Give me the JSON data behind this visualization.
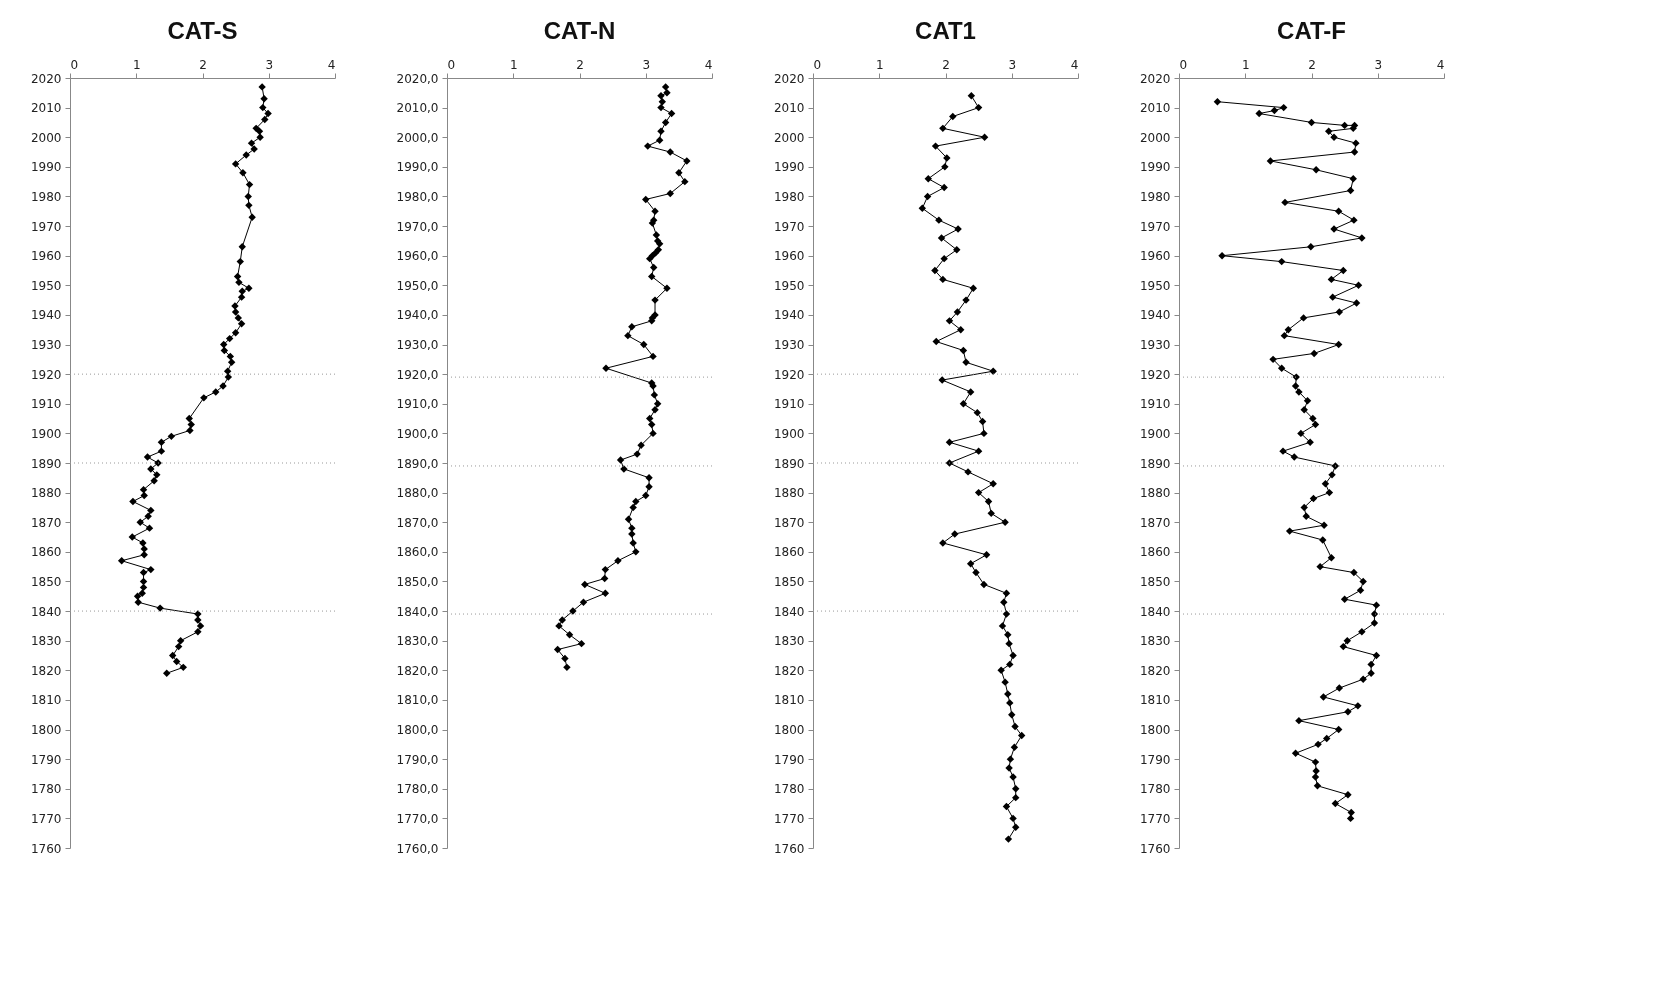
{
  "chart_data": [
    {
      "type": "line",
      "title": "CAT-S",
      "marker": "diamond",
      "line_style": "solid",
      "xlim": [
        0,
        4
      ],
      "xticks": [
        0,
        1,
        2,
        3,
        4
      ],
      "ylim": [
        1760,
        2020
      ],
      "yticks": [
        1760,
        1770,
        1780,
        1790,
        1800,
        1810,
        1820,
        1830,
        1840,
        1850,
        1860,
        1870,
        1880,
        1890,
        1900,
        1910,
        1920,
        1930,
        1940,
        1950,
        1960,
        1970,
        1980,
        1990,
        2000,
        2010,
        2020
      ],
      "ref_lines": [
        {
          "axis": "y",
          "value": 1920,
          "color": "#999999",
          "line_style": "dotted"
        },
        {
          "axis": "y",
          "value": 1890,
          "color": "#999999",
          "line_style": "dotted"
        },
        {
          "axis": "y",
          "value": 1840,
          "color": "#999999",
          "line_style": "dotted"
        }
      ],
      "series": [
        {
          "color": "#000000",
          "x": [
            2.9,
            2.93,
            2.91,
            2.99,
            2.94,
            2.81,
            2.86,
            2.87,
            2.74,
            2.78,
            2.66,
            2.5,
            2.61,
            2.71,
            2.69,
            2.7,
            2.75,
            2.6,
            2.57,
            2.53,
            2.55,
            2.7,
            2.6,
            2.59,
            2.49,
            2.5,
            2.54,
            2.59,
            2.5,
            2.41,
            2.32,
            2.33,
            2.42,
            2.44,
            2.38,
            2.39,
            2.31,
            2.2,
            2.02,
            1.8,
            1.83,
            1.81,
            1.53,
            1.38,
            1.38,
            1.17,
            1.33,
            1.22,
            1.31,
            1.27,
            1.11,
            1.12,
            0.95,
            1.22,
            1.18,
            1.06,
            1.2,
            0.94,
            1.1,
            1.12,
            1.12,
            0.78,
            1.22,
            1.11,
            1.11,
            1.11,
            1.09,
            1.02,
            1.03,
            1.36,
            1.93,
            1.93,
            1.97,
            1.93,
            1.67,
            1.64,
            1.55,
            1.61,
            1.71,
            1.46
          ],
          "values": [
            2017,
            2013,
            2010,
            2008,
            2006,
            2003,
            2002,
            2000,
            1998,
            1996,
            1994,
            1991,
            1988,
            1984,
            1980,
            1977,
            1973,
            1963,
            1958,
            1953,
            1951,
            1949,
            1948,
            1946,
            1943,
            1941,
            1939,
            1937,
            1934,
            1932,
            1930,
            1928,
            1926,
            1924,
            1921,
            1919,
            1916,
            1914,
            1912,
            1905,
            1903,
            1901,
            1899,
            1897,
            1894,
            1892,
            1890,
            1888,
            1886,
            1884,
            1881,
            1879,
            1877,
            1874,
            1872,
            1870,
            1868,
            1865,
            1863,
            1861,
            1859,
            1857,
            1854,
            1853,
            1850,
            1848,
            1846,
            1845,
            1843,
            1841,
            1839,
            1837,
            1835,
            1833,
            1830,
            1828,
            1825,
            1823,
            1821,
            1819
          ]
        }
      ]
    },
    {
      "type": "line",
      "title": "CAT-N",
      "marker": "diamond",
      "line_style": "solid",
      "xlim": [
        0,
        4
      ],
      "xticks": [
        0,
        1,
        2,
        3,
        4
      ],
      "ylim": [
        1760,
        2020
      ],
      "yticks": [
        {
          "value": 1760,
          "label": "1760,0"
        },
        {
          "value": 1770,
          "label": "1770,0"
        },
        {
          "value": 1780,
          "label": "1780,0"
        },
        {
          "value": 1790,
          "label": "1790,0"
        },
        {
          "value": 1800,
          "label": "1800,0"
        },
        {
          "value": 1810,
          "label": "1810,0"
        },
        {
          "value": 1820,
          "label": "1820,0"
        },
        {
          "value": 1830,
          "label": "1830,0"
        },
        {
          "value": 1840,
          "label": "1840,0"
        },
        {
          "value": 1850,
          "label": "1850,0"
        },
        {
          "value": 1860,
          "label": "1860,0"
        },
        {
          "value": 1870,
          "label": "1870,0"
        },
        {
          "value": 1880,
          "label": "1880,0"
        },
        {
          "value": 1890,
          "label": "1890,0"
        },
        {
          "value": 1900,
          "label": "1900,0"
        },
        {
          "value": 1910,
          "label": "1910,0"
        },
        {
          "value": 1920,
          "label": "1920,0"
        },
        {
          "value": 1930,
          "label": "1930,0"
        },
        {
          "value": 1940,
          "label": "1940,0"
        },
        {
          "value": 1950,
          "label": "1950,0"
        },
        {
          "value": 1960,
          "label": "1960,0"
        },
        {
          "value": 1970,
          "label": "1970,0"
        },
        {
          "value": 1980,
          "label": "1980,0"
        },
        {
          "value": 1990,
          "label": "1990,0"
        },
        {
          "value": 2000,
          "label": "2000,0"
        },
        {
          "value": 2010,
          "label": "2010,0"
        },
        {
          "value": 2020,
          "label": "2020,0"
        }
      ],
      "ref_lines": [
        {
          "axis": "y",
          "value": 1919,
          "color": "#999999",
          "line_style": "dotted"
        },
        {
          "axis": "y",
          "value": 1889,
          "color": "#999999",
          "line_style": "dotted"
        },
        {
          "axis": "y",
          "value": 1839,
          "color": "#999999",
          "line_style": "dotted"
        }
      ],
      "series": [
        {
          "color": "#000000",
          "x": [
            3.3,
            3.32,
            3.23,
            3.25,
            3.23,
            3.39,
            3.3,
            3.23,
            3.21,
            3.03,
            3.37,
            3.62,
            3.5,
            3.59,
            3.37,
            3.0,
            3.14,
            3.12,
            3.1,
            3.16,
            3.18,
            3.21,
            3.19,
            3.15,
            3.1,
            3.06,
            3.12,
            3.09,
            3.32,
            3.14,
            3.14,
            3.1,
            3.09,
            2.79,
            2.73,
            2.97,
            3.11,
            2.4,
            3.09,
            3.11,
            3.13,
            3.18,
            3.14,
            3.06,
            3.09,
            3.11,
            2.93,
            2.87,
            2.62,
            2.67,
            3.05,
            3.05,
            3.0,
            2.85,
            2.81,
            2.74,
            2.79,
            2.79,
            2.81,
            2.85,
            2.58,
            2.39,
            2.38,
            2.08,
            2.39,
            2.06,
            1.9,
            1.74,
            1.69,
            1.85,
            2.03,
            1.67,
            1.78,
            1.81
          ],
          "values": [
            2017,
            2015,
            2014,
            2012,
            2010,
            2008,
            2005,
            2002,
            1999,
            1997,
            1995,
            1992,
            1988,
            1985,
            1981,
            1979,
            1975,
            1972,
            1971,
            1967,
            1965,
            1964,
            1962,
            1961,
            1960,
            1959,
            1956,
            1953,
            1949,
            1945,
            1940,
            1939,
            1938,
            1936,
            1933,
            1930,
            1926,
            1922,
            1917,
            1916,
            1913,
            1910,
            1908,
            1905,
            1903,
            1900,
            1896,
            1893,
            1891,
            1888,
            1885,
            1882,
            1879,
            1877,
            1875,
            1871,
            1868,
            1866,
            1863,
            1860,
            1857,
            1854,
            1851,
            1849,
            1846,
            1843,
            1840,
            1837,
            1835,
            1832,
            1829,
            1827,
            1824,
            1821
          ]
        }
      ]
    },
    {
      "type": "line",
      "title": "CAT1",
      "marker": "diamond",
      "line_style": "solid",
      "xlim": [
        0,
        4
      ],
      "xticks": [
        0,
        1,
        2,
        3,
        4
      ],
      "ylim": [
        1760,
        2020
      ],
      "yticks": [
        1760,
        1770,
        1780,
        1790,
        1800,
        1810,
        1820,
        1830,
        1840,
        1850,
        1860,
        1870,
        1880,
        1890,
        1900,
        1910,
        1920,
        1930,
        1940,
        1950,
        1960,
        1970,
        1980,
        1990,
        2000,
        2010,
        2020
      ],
      "ref_lines": [
        {
          "axis": "y",
          "value": 1920,
          "color": "#999999",
          "line_style": "dotted"
        },
        {
          "axis": "y",
          "value": 1890,
          "color": "#999999",
          "line_style": "dotted"
        },
        {
          "axis": "y",
          "value": 1840,
          "color": "#999999",
          "line_style": "dotted"
        }
      ],
      "series": [
        {
          "color": "#000000",
          "x": [
            2.39,
            2.5,
            2.11,
            1.96,
            2.59,
            1.85,
            2.02,
            1.99,
            1.74,
            1.98,
            1.73,
            1.65,
            1.9,
            2.19,
            1.94,
            2.17,
            1.98,
            1.84,
            1.96,
            2.42,
            2.31,
            2.18,
            2.06,
            2.23,
            1.86,
            2.27,
            2.31,
            2.72,
            1.95,
            2.38,
            2.27,
            2.48,
            2.56,
            2.58,
            2.06,
            2.5,
            2.06,
            2.34,
            2.72,
            2.5,
            2.65,
            2.69,
            2.9,
            2.14,
            1.96,
            2.62,
            2.38,
            2.46,
            2.58,
            2.92,
            2.88,
            2.92,
            2.86,
            2.94,
            2.96,
            3.02,
            2.97,
            2.84,
            2.9,
            2.94,
            2.97,
            3.0,
            3.05,
            3.15,
            3.04,
            2.98,
            2.96,
            3.02,
            3.06,
            3.06,
            2.92,
            3.02,
            3.06,
            2.95
          ],
          "values": [
            2014,
            2010,
            2007,
            2003,
            2000,
            1997,
            1993,
            1990,
            1986,
            1983,
            1980,
            1976,
            1972,
            1969,
            1966,
            1962,
            1959,
            1955,
            1952,
            1949,
            1945,
            1941,
            1938,
            1935,
            1931,
            1928,
            1924,
            1921,
            1918,
            1914,
            1910,
            1907,
            1904,
            1900,
            1897,
            1894,
            1890,
            1887,
            1883,
            1880,
            1877,
            1873,
            1870,
            1866,
            1863,
            1859,
            1856,
            1853,
            1849,
            1846,
            1843,
            1839,
            1835,
            1832,
            1829,
            1825,
            1822,
            1820,
            1816,
            1812,
            1809,
            1805,
            1801,
            1798,
            1794,
            1790,
            1787,
            1784,
            1780,
            1777,
            1774,
            1770,
            1767,
            1763
          ]
        }
      ]
    },
    {
      "type": "line",
      "title": "CAT-F",
      "marker": "diamond",
      "line_style": "solid",
      "xlim": [
        0,
        4
      ],
      "xticks": [
        0,
        1,
        2,
        3,
        4
      ],
      "ylim": [
        1760,
        2020
      ],
      "yticks": [
        1760,
        1770,
        1780,
        1790,
        1800,
        1810,
        1820,
        1830,
        1840,
        1850,
        1860,
        1870,
        1880,
        1890,
        1900,
        1910,
        1920,
        1930,
        1940,
        1950,
        1960,
        1970,
        1980,
        1990,
        2000,
        2010,
        2020
      ],
      "ref_lines": [
        {
          "axis": "y",
          "value": 1919,
          "color": "#999999",
          "line_style": "dotted"
        },
        {
          "axis": "y",
          "value": 1889,
          "color": "#999999",
          "line_style": "dotted"
        },
        {
          "axis": "y",
          "value": 1839,
          "color": "#999999",
          "line_style": "dotted"
        }
      ],
      "series": [
        {
          "color": "#000000",
          "x": [
            0.58,
            1.58,
            1.44,
            1.21,
            2.0,
            2.5,
            2.65,
            2.63,
            2.26,
            2.34,
            2.67,
            2.65,
            1.38,
            2.07,
            2.63,
            2.59,
            1.6,
            2.41,
            2.64,
            2.34,
            2.76,
            1.99,
            0.65,
            1.55,
            2.48,
            2.3,
            2.71,
            2.32,
            2.68,
            2.42,
            1.88,
            1.65,
            1.59,
            2.41,
            2.04,
            1.42,
            1.55,
            1.77,
            1.76,
            1.81,
            1.94,
            1.89,
            2.02,
            2.06,
            1.84,
            1.98,
            1.57,
            1.74,
            2.36,
            2.31,
            2.21,
            2.27,
            2.03,
            1.89,
            1.92,
            2.19,
            1.67,
            2.17,
            2.3,
            2.13,
            2.64,
            2.78,
            2.74,
            2.5,
            2.98,
            2.95,
            2.95,
            2.76,
            2.54,
            2.48,
            2.98,
            2.9,
            2.9,
            2.78,
            2.42,
            2.18,
            2.7,
            2.55,
            1.81,
            2.41,
            2.23,
            2.1,
            1.76,
            2.06,
            2.07,
            2.06,
            2.09,
            2.55,
            2.36,
            2.6,
            2.59
          ],
          "values": [
            2012,
            2010,
            2009,
            2008,
            2005,
            2004,
            2004,
            2003,
            2002,
            2000,
            1998,
            1995,
            1992,
            1989,
            1986,
            1982,
            1978,
            1975,
            1972,
            1969,
            1966,
            1963,
            1960,
            1958,
            1955,
            1952,
            1950,
            1946,
            1944,
            1941,
            1939,
            1935,
            1933,
            1930,
            1927,
            1925,
            1922,
            1919,
            1916,
            1914,
            1911,
            1908,
            1905,
            1903,
            1900,
            1897,
            1894,
            1892,
            1889,
            1886,
            1883,
            1880,
            1878,
            1875,
            1872,
            1869,
            1867,
            1864,
            1858,
            1855,
            1853,
            1850,
            1847,
            1844,
            1842,
            1839,
            1836,
            1833,
            1830,
            1828,
            1825,
            1822,
            1819,
            1817,
            1814,
            1811,
            1808,
            1806,
            1803,
            1800,
            1797,
            1795,
            1792,
            1789,
            1786,
            1784,
            1781,
            1778,
            1775,
            1772,
            1770
          ]
        }
      ]
    }
  ]
}
